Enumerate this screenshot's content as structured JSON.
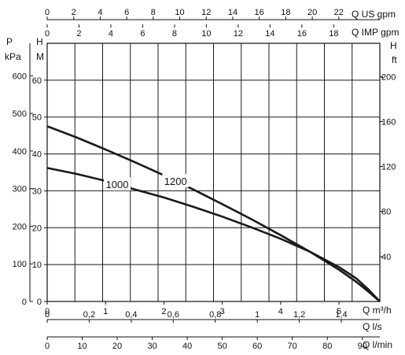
{
  "chart_data": {
    "type": "line",
    "title": "",
    "x": {
      "label": "Q m³/h",
      "ticks": [
        0,
        1,
        2,
        3,
        4,
        5
      ],
      "range": [
        0,
        5.7
      ]
    },
    "y": {
      "label": "H m",
      "ticks": [
        0,
        10,
        20,
        30,
        40,
        50,
        60
      ],
      "range": [
        0,
        70
      ]
    },
    "series": [
      {
        "name": "1200",
        "x": [
          0,
          0.5,
          1.0,
          1.5,
          2.0,
          2.5,
          3.0,
          3.5,
          4.0,
          4.5,
          5.0,
          5.3,
          5.5,
          5.7
        ],
        "y": [
          47.5,
          44.5,
          41.2,
          37.8,
          34.2,
          30.4,
          26.4,
          22.3,
          18.0,
          13.5,
          8.6,
          5.3,
          2.7,
          0
        ]
      },
      {
        "name": "1000",
        "x": [
          0,
          0.5,
          1.0,
          1.5,
          2.0,
          2.5,
          3.0,
          3.5,
          4.0,
          4.5,
          5.0,
          5.3,
          5.5,
          5.7
        ],
        "y": [
          36.2,
          34.6,
          32.7,
          30.4,
          28.2,
          25.7,
          23.0,
          20.1,
          17.0,
          13.5,
          9.3,
          6.2,
          3.3,
          0
        ]
      }
    ],
    "axes_extra": {
      "top_us_gpm": {
        "label": "Q US gpm",
        "ticks": [
          0,
          2,
          4,
          6,
          8,
          10,
          12,
          14,
          16,
          18,
          20,
          22
        ]
      },
      "top_imp_gpm": {
        "label": "Q IMP gpm",
        "ticks": [
          0,
          2,
          4,
          6,
          8,
          10,
          12,
          14,
          16,
          18
        ]
      },
      "bottom_ls": {
        "label": "Q l/s",
        "ticks": [
          "0",
          "0,2",
          "0,4",
          "0,6",
          "0,8",
          "1",
          "1,2",
          "1,4"
        ]
      },
      "bottom_lmin": {
        "label": "Q l/min",
        "ticks": [
          0,
          10,
          20,
          30,
          40,
          50,
          60,
          70,
          80,
          90
        ]
      },
      "left_kpa": {
        "label_top": "P",
        "label_unit": "kPa",
        "ticks": [
          0,
          100,
          200,
          300,
          400,
          500,
          600
        ]
      },
      "right_ft": {
        "label_top": "H",
        "label_unit": "ft",
        "ticks": [
          40,
          80,
          120,
          160,
          200
        ]
      },
      "left_m_label": {
        "top": "H",
        "unit": "M"
      }
    },
    "grid": true
  }
}
